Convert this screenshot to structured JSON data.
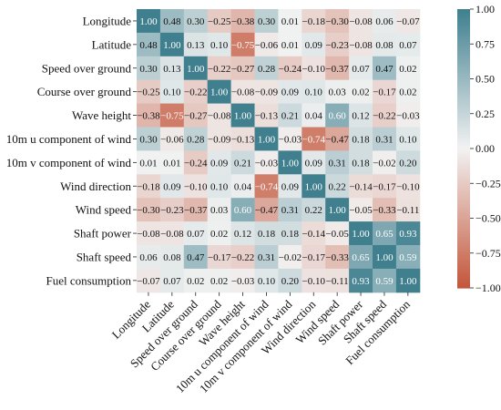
{
  "chart_data": {
    "type": "heatmap",
    "variables": [
      "Longitude",
      "Latitude",
      "Speed over ground",
      "Course over ground",
      "Wave height",
      "10m u component of wind",
      "10m v component of wind",
      "Wind direction",
      "Wind speed",
      "Shaft power",
      "Shaft speed",
      "Fuel consumption"
    ],
    "values": [
      [
        1.0,
        0.48,
        0.3,
        -0.25,
        -0.38,
        0.3,
        0.01,
        -0.18,
        -0.3,
        -0.08,
        0.06,
        -0.07
      ],
      [
        0.48,
        1.0,
        0.13,
        0.1,
        -0.75,
        -0.06,
        0.01,
        0.09,
        -0.23,
        -0.08,
        0.08,
        0.07
      ],
      [
        0.3,
        0.13,
        1.0,
        -0.22,
        -0.27,
        0.28,
        -0.24,
        -0.1,
        -0.37,
        0.07,
        0.47,
        0.02
      ],
      [
        -0.25,
        0.1,
        -0.22,
        1.0,
        -0.08,
        -0.09,
        0.09,
        0.1,
        0.03,
        0.02,
        -0.17,
        0.02
      ],
      [
        -0.38,
        -0.75,
        -0.27,
        -0.08,
        1.0,
        -0.13,
        0.21,
        0.04,
        0.6,
        0.12,
        -0.22,
        -0.03
      ],
      [
        0.3,
        -0.06,
        0.28,
        -0.09,
        -0.13,
        1.0,
        -0.03,
        -0.74,
        -0.47,
        0.18,
        0.31,
        0.1
      ],
      [
        0.01,
        0.01,
        -0.24,
        0.09,
        0.21,
        -0.03,
        1.0,
        0.09,
        0.31,
        0.18,
        -0.02,
        0.2
      ],
      [
        -0.18,
        0.09,
        -0.1,
        0.1,
        0.04,
        -0.74,
        0.09,
        1.0,
        0.22,
        -0.14,
        -0.17,
        -0.1
      ],
      [
        -0.3,
        -0.23,
        -0.37,
        0.03,
        0.6,
        -0.47,
        0.31,
        0.22,
        1.0,
        -0.05,
        -0.33,
        -0.11
      ],
      [
        -0.08,
        -0.08,
        0.07,
        0.02,
        0.12,
        0.18,
        0.18,
        -0.14,
        -0.05,
        1.0,
        0.65,
        0.93
      ],
      [
        0.06,
        0.08,
        0.47,
        -0.17,
        -0.22,
        0.31,
        -0.02,
        -0.17,
        -0.33,
        0.65,
        1.0,
        0.59
      ],
      [
        -0.07,
        0.07,
        0.02,
        0.02,
        -0.03,
        0.1,
        0.2,
        -0.1,
        -0.11,
        0.93,
        0.59,
        1.0
      ]
    ],
    "vmin": -1.0,
    "vmax": 1.0,
    "colorbar_ticks": [
      1.0,
      0.75,
      0.5,
      0.25,
      0.0,
      -0.25,
      -0.5,
      -0.75,
      -1.0
    ],
    "colorbar_tick_labels": [
      "1.00",
      "0.75",
      "0.50",
      "0.25",
      "0.00",
      "−0.25",
      "−0.50",
      "−0.75",
      "−1.00"
    ],
    "colormap": {
      "negative_end": "#c3553a",
      "center": "#f2f2f2",
      "positive_end": "#3f7f8e"
    },
    "annotation_format": "2 decimals",
    "title": "",
    "xlabel": "",
    "ylabel": "",
    "grid": false,
    "colorbar_position": "right"
  }
}
